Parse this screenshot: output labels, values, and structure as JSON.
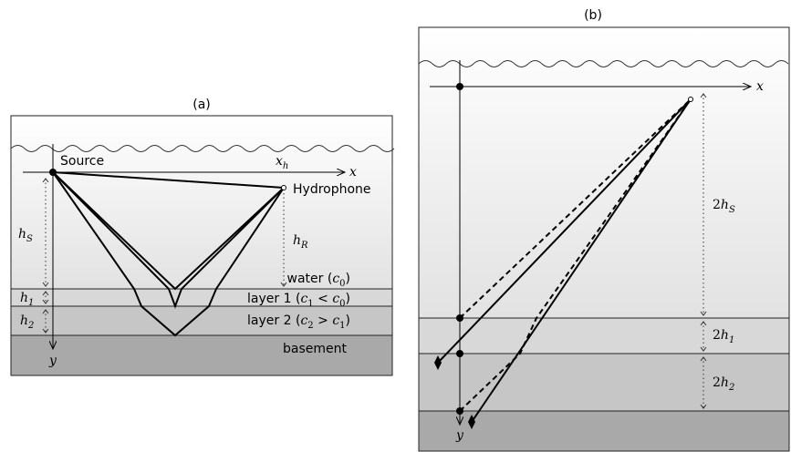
{
  "panel_a": {
    "caption": "(a)",
    "source_label": "Source",
    "hydrophone_label": "Hydrophone",
    "x_axis": "x",
    "y_axis": "y",
    "xh": {
      "main": "x",
      "sub": "h"
    },
    "hS": {
      "main": "h",
      "sub": "S"
    },
    "hR": {
      "main": "h",
      "sub": "R"
    },
    "h1": {
      "main": "h",
      "sub": "1"
    },
    "h2": {
      "main": "h",
      "sub": "2"
    },
    "water": {
      "text": "water (",
      "c": "c",
      "sub": "0",
      "close": ")"
    },
    "layer1": {
      "text": "layer 1 (",
      "c1": "c",
      "sub1": "1",
      "rel": " < ",
      "c2": "c",
      "sub2": "0",
      "close": ")"
    },
    "layer2": {
      "text": "layer 2 (",
      "c1": "c",
      "sub1": "2",
      "rel": " > ",
      "c2": "c",
      "sub2": "1",
      "close": ")"
    },
    "basement": "basement"
  },
  "panel_b": {
    "caption": "(b)",
    "x_axis": "x",
    "y_axis": "y",
    "twohS": {
      "coef": "2",
      "main": "h",
      "sub": "S"
    },
    "twoh1": {
      "coef": "2",
      "main": "h",
      "sub": "1"
    },
    "twoh2": {
      "coef": "2",
      "main": "h",
      "sub": "2"
    }
  },
  "colors": {
    "water_top": "#ffffff",
    "water_bottom": "#e3e3e3",
    "layer1": "#d8d8d8",
    "layer2": "#c7c7c7",
    "basement": "#a9a9a9",
    "line": "#000000"
  }
}
